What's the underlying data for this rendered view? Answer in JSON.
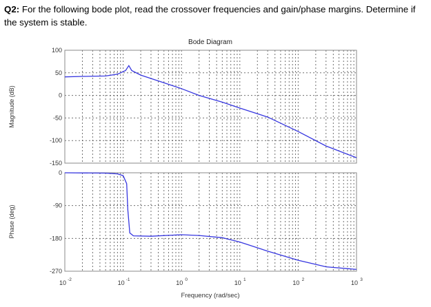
{
  "question": {
    "label": "Q2:",
    "text": " For the following bode plot, read the crossover frequencies and gain/phase margins.  Determine if the system is stable."
  },
  "chart_data": {
    "type": "line",
    "title": "Bode Diagram",
    "xlabel": "Frequency  (rad/sec)",
    "xscale": "log",
    "xlim": [
      0.01,
      1000
    ],
    "x_ticks": [
      {
        "base": "10",
        "exp": "-2"
      },
      {
        "base": "10",
        "exp": "-1"
      },
      {
        "base": "10",
        "exp": "0"
      },
      {
        "base": "10",
        "exp": "1"
      },
      {
        "base": "10",
        "exp": "2"
      },
      {
        "base": "10",
        "exp": "3"
      }
    ],
    "grid": true,
    "panels": [
      {
        "name": "magnitude",
        "ylabel": "Magnitude (dB)",
        "ylim": [
          -150,
          100
        ],
        "y_ticks": [
          "100",
          "50",
          "0",
          "-50",
          "-100",
          "-150"
        ],
        "series": [
          {
            "name": "Magnitude",
            "color": "#3535e0",
            "x": [
              0.01,
              0.02,
              0.05,
              0.08,
              0.11,
              0.125,
              0.14,
              0.2,
              0.5,
              1,
              2,
              5,
              10,
              30,
              100,
              300,
              1000
            ],
            "y": [
              41,
              42,
              43,
              47,
              55,
              66,
              55,
              45,
              28,
              15,
              0,
              -15,
              -28,
              -48,
              -80,
              -112,
              -138
            ]
          }
        ]
      },
      {
        "name": "phase",
        "ylabel": "Phase (deg)",
        "ylim": [
          -270,
          0
        ],
        "y_ticks": [
          "0",
          "-90",
          "-180",
          "-270"
        ],
        "series": [
          {
            "name": "Phase",
            "color": "#3535e0",
            "x": [
              0.01,
              0.05,
              0.08,
              0.1,
              0.115,
              0.12,
              0.13,
              0.15,
              0.3,
              1,
              2,
              5,
              10,
              30,
              100,
              300,
              1000
            ],
            "y": [
              0,
              -1,
              -3,
              -8,
              -30,
              -100,
              -165,
              -173,
              -174,
              -170,
              -172,
              -178,
              -190,
              -215,
              -240,
              -258,
              -265
            ]
          }
        ]
      }
    ]
  }
}
